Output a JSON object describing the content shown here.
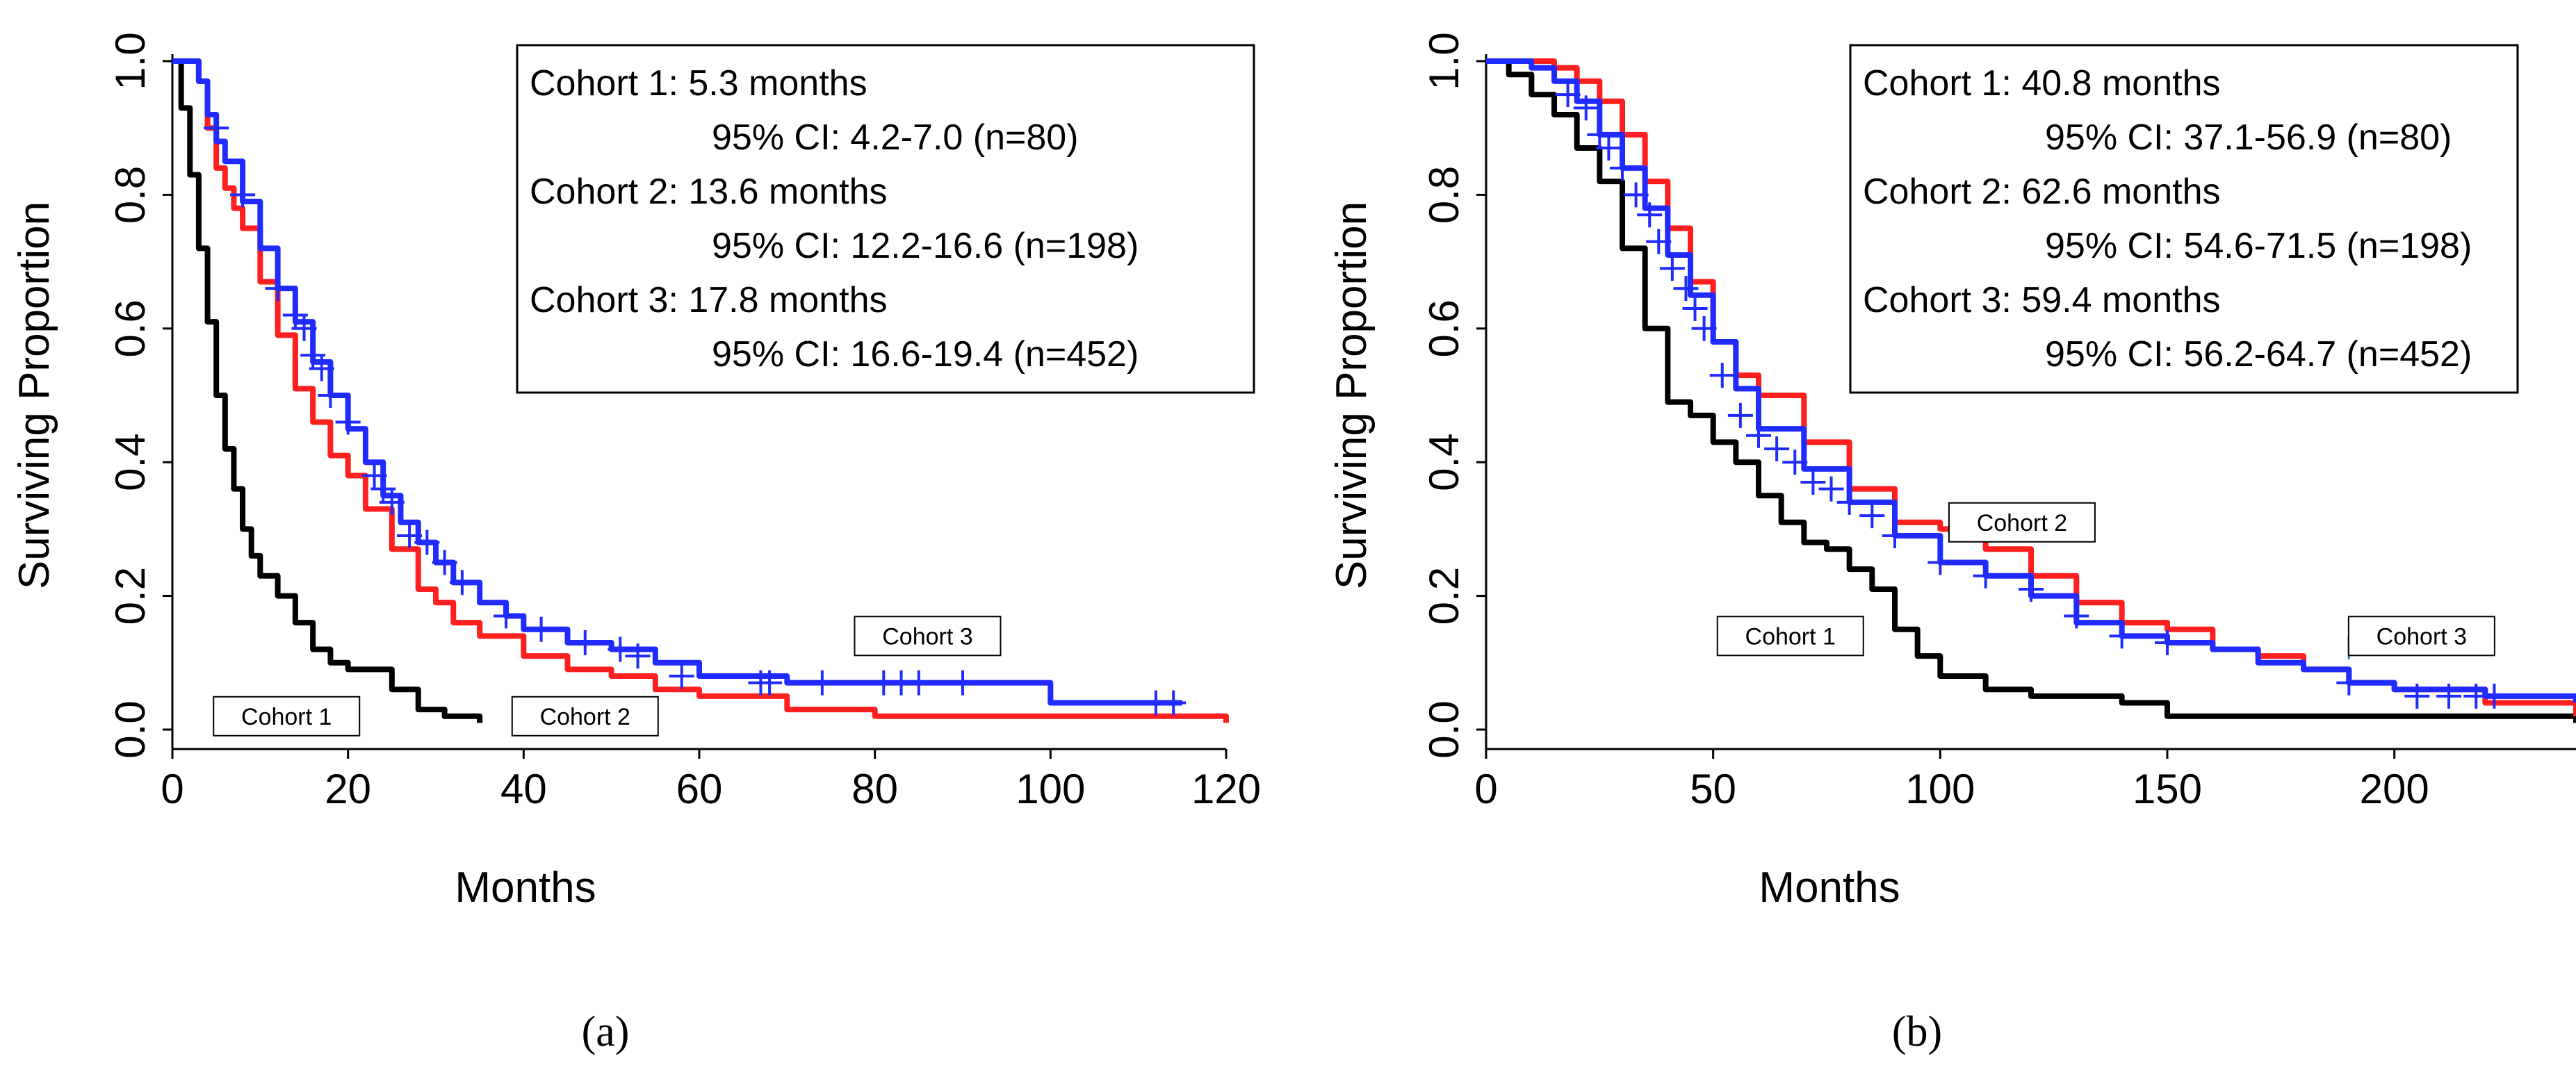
{
  "colors": {
    "cohort1": "#000000",
    "cohort2": "#ff1f1f",
    "cohort3": "#1f2bff"
  },
  "chart_data": [
    {
      "type": "line",
      "panel_label": "(a)",
      "title": "",
      "xlabel": "Months",
      "ylabel": "Surviving Proportion",
      "xlim": [
        0,
        120
      ],
      "ylim": [
        0,
        1.0
      ],
      "xticks": [
        "0",
        "20",
        "40",
        "60",
        "80",
        "100",
        "120"
      ],
      "yticks": [
        "0.0",
        "0.2",
        "0.4",
        "0.6",
        "0.8",
        "1.0"
      ],
      "legend": {
        "position": "top-right",
        "lines": [
          {
            "text": "Cohort 1: 5.3 months",
            "indent": false
          },
          {
            "text": "95% CI: 4.2-7.0 (n=80)",
            "indent": true
          },
          {
            "text": "Cohort 2: 13.6 months",
            "indent": false
          },
          {
            "text": "95% CI: 12.2-16.6 (n=198)",
            "indent": true
          },
          {
            "text": "Cohort 3: 17.8 months",
            "indent": false
          },
          {
            "text": "95% CI: 16.6-19.4 (n=452)",
            "indent": true
          }
        ]
      },
      "callouts": [
        {
          "label": "Cohort 1",
          "anchor_x": 13,
          "anchor_y": 0.02,
          "leader": false
        },
        {
          "label": "Cohort 2",
          "anchor_x": 47,
          "anchor_y": 0.02,
          "leader": false
        },
        {
          "label": "Cohort 3",
          "anchor_x": 86,
          "anchor_y": 0.14,
          "leader": false
        }
      ],
      "series": [
        {
          "name": "Cohort 1",
          "color_key": "cohort1",
          "x": [
            0,
            1,
            2,
            3,
            4,
            5,
            6,
            7,
            8,
            9,
            10,
            12,
            14,
            16,
            18,
            20,
            22,
            25,
            28,
            31,
            35
          ],
          "y": [
            1.0,
            0.93,
            0.83,
            0.72,
            0.61,
            0.5,
            0.42,
            0.36,
            0.3,
            0.26,
            0.23,
            0.2,
            0.16,
            0.12,
            0.1,
            0.09,
            0.09,
            0.06,
            0.03,
            0.02,
            0.01
          ],
          "censor_x": [],
          "censor_y": []
        },
        {
          "name": "Cohort 2",
          "color_key": "cohort2",
          "x": [
            0,
            2,
            3,
            4,
            5,
            6,
            7,
            8,
            10,
            12,
            14,
            16,
            18,
            20,
            22,
            25,
            28,
            30,
            32,
            35,
            40,
            45,
            50,
            55,
            60,
            70,
            80,
            100,
            120
          ],
          "y": [
            1.0,
            1.0,
            0.97,
            0.9,
            0.84,
            0.81,
            0.78,
            0.75,
            0.67,
            0.59,
            0.51,
            0.46,
            0.41,
            0.38,
            0.33,
            0.27,
            0.21,
            0.19,
            0.16,
            0.14,
            0.11,
            0.09,
            0.08,
            0.06,
            0.05,
            0.03,
            0.02,
            0.02,
            0.01
          ],
          "censor_x": [],
          "censor_y": []
        },
        {
          "name": "Cohort 3",
          "color_key": "cohort3",
          "x": [
            0,
            2,
            3,
            4,
            5,
            6,
            8,
            10,
            12,
            14,
            16,
            18,
            20,
            22,
            24,
            26,
            28,
            30,
            32,
            35,
            38,
            40,
            45,
            50,
            55,
            60,
            70,
            80,
            90,
            97,
            100,
            115
          ],
          "y": [
            1.0,
            1.0,
            0.97,
            0.92,
            0.88,
            0.85,
            0.79,
            0.72,
            0.66,
            0.61,
            0.55,
            0.5,
            0.45,
            0.4,
            0.35,
            0.31,
            0.28,
            0.25,
            0.22,
            0.19,
            0.17,
            0.15,
            0.13,
            0.12,
            0.1,
            0.08,
            0.07,
            0.07,
            0.07,
            0.07,
            0.04,
            0.04
          ],
          "censor_x": [
            5,
            8,
            12,
            14,
            15,
            16,
            17,
            18,
            20,
            23,
            24,
            25,
            27,
            29,
            31,
            33,
            38,
            42,
            47,
            51,
            53,
            58,
            67,
            68,
            74,
            81,
            83,
            85,
            90,
            112,
            114
          ],
          "censor_y": [
            0.9,
            0.8,
            0.66,
            0.62,
            0.6,
            0.56,
            0.54,
            0.5,
            0.46,
            0.38,
            0.36,
            0.34,
            0.29,
            0.28,
            0.25,
            0.22,
            0.17,
            0.15,
            0.13,
            0.12,
            0.11,
            0.08,
            0.07,
            0.07,
            0.07,
            0.07,
            0.07,
            0.07,
            0.07,
            0.04,
            0.04
          ]
        }
      ]
    },
    {
      "type": "line",
      "panel_label": "(b)",
      "title": "",
      "xlabel": "Months",
      "ylabel": "Surviving Proportion",
      "xlim": [
        0,
        240
      ],
      "ylim": [
        0,
        1.0
      ],
      "xticks": [
        "0",
        "50",
        "100",
        "150",
        "200"
      ],
      "yticks": [
        "0.0",
        "0.2",
        "0.4",
        "0.6",
        "0.8",
        "1.0"
      ],
      "legend": {
        "position": "top-right",
        "lines": [
          {
            "text": "Cohort 1: 40.8 months",
            "indent": false
          },
          {
            "text": "95% CI: 37.1-56.9 (n=80)",
            "indent": true
          },
          {
            "text": "Cohort 2: 62.6 months",
            "indent": false
          },
          {
            "text": "95% CI: 54.6-71.5 (n=198)",
            "indent": true
          },
          {
            "text": "Cohort 3: 59.4 months",
            "indent": false
          },
          {
            "text": "95% CI: 56.2-64.7 (n=452)",
            "indent": true
          }
        ]
      },
      "callouts": [
        {
          "label": "Cohort 1",
          "anchor_x": 67,
          "anchor_y": 0.14,
          "leader": false
        },
        {
          "label": "Cohort 2",
          "anchor_x": 118,
          "anchor_y": 0.31,
          "leader": true,
          "leader_to_x": 105,
          "leader_to_y": 0.285
        },
        {
          "label": "Cohort 3",
          "anchor_x": 206,
          "anchor_y": 0.14,
          "leader": true,
          "leader_to_x": 190,
          "leader_to_y": 0.105
        }
      ],
      "series": [
        {
          "name": "Cohort 1",
          "color_key": "cohort1",
          "x": [
            0,
            5,
            10,
            15,
            20,
            25,
            30,
            35,
            40,
            45,
            50,
            55,
            60,
            65,
            70,
            75,
            80,
            85,
            90,
            95,
            100,
            110,
            120,
            130,
            140,
            150,
            160,
            240
          ],
          "y": [
            1.0,
            0.98,
            0.95,
            0.92,
            0.87,
            0.82,
            0.72,
            0.6,
            0.49,
            0.47,
            0.43,
            0.4,
            0.35,
            0.31,
            0.28,
            0.27,
            0.24,
            0.21,
            0.15,
            0.11,
            0.08,
            0.06,
            0.05,
            0.05,
            0.04,
            0.02,
            0.02,
            0.01
          ],
          "censor_x": [],
          "censor_y": []
        },
        {
          "name": "Cohort 2",
          "color_key": "cohort2",
          "x": [
            0,
            10,
            15,
            20,
            25,
            30,
            35,
            40,
            45,
            50,
            55,
            60,
            70,
            80,
            90,
            100,
            110,
            120,
            130,
            140,
            150,
            160,
            170,
            180,
            190,
            200,
            220,
            240
          ],
          "y": [
            1.0,
            1.0,
            0.99,
            0.97,
            0.94,
            0.89,
            0.82,
            0.75,
            0.67,
            0.58,
            0.53,
            0.5,
            0.43,
            0.36,
            0.31,
            0.3,
            0.27,
            0.23,
            0.19,
            0.16,
            0.15,
            0.12,
            0.11,
            0.09,
            0.07,
            0.06,
            0.04,
            0.02
          ],
          "censor_x": [],
          "censor_y": []
        },
        {
          "name": "Cohort 3",
          "color_key": "cohort3",
          "x": [
            0,
            10,
            15,
            20,
            25,
            30,
            35,
            40,
            45,
            50,
            55,
            60,
            70,
            80,
            90,
            100,
            110,
            120,
            130,
            140,
            150,
            160,
            170,
            180,
            190,
            200,
            220,
            240
          ],
          "y": [
            1.0,
            0.99,
            0.97,
            0.94,
            0.89,
            0.84,
            0.78,
            0.71,
            0.65,
            0.58,
            0.51,
            0.45,
            0.39,
            0.34,
            0.29,
            0.25,
            0.23,
            0.2,
            0.16,
            0.14,
            0.13,
            0.12,
            0.1,
            0.09,
            0.07,
            0.06,
            0.05,
            0.04
          ],
          "censor_x": [
            18,
            22,
            25,
            27,
            30,
            33,
            36,
            38,
            41,
            44,
            46,
            48,
            52,
            56,
            60,
            64,
            68,
            72,
            76,
            80,
            85,
            90,
            100,
            110,
            120,
            130,
            140,
            150,
            190,
            205,
            212,
            218,
            222
          ],
          "censor_y": [
            0.95,
            0.93,
            0.89,
            0.87,
            0.84,
            0.8,
            0.77,
            0.73,
            0.69,
            0.66,
            0.63,
            0.6,
            0.53,
            0.47,
            0.44,
            0.42,
            0.4,
            0.37,
            0.36,
            0.34,
            0.32,
            0.29,
            0.25,
            0.23,
            0.21,
            0.17,
            0.14,
            0.13,
            0.07,
            0.05,
            0.05,
            0.05,
            0.05
          ]
        }
      ]
    }
  ]
}
